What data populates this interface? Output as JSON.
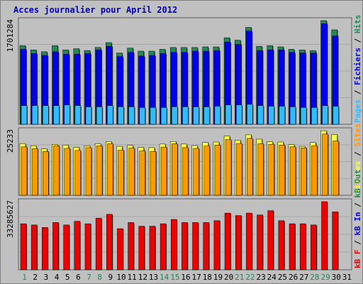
{
  "title": "Acces journalier pour April 2012",
  "colors": {
    "frame_bg": "#c0c0c0",
    "panel_bg": "#c0c0c0",
    "grid": "#a8a8a8",
    "pages": "#33bbff",
    "fichiers": "#0000ee",
    "hits": "#228855",
    "visites": "#ffff44",
    "sites": "#ff9900",
    "kb": "#ee0000",
    "title": "#0000c0",
    "weekend": "#228855"
  },
  "chart_data": [
    {
      "type": "bar",
      "title": "Acces journalier pour April 2012",
      "categories": [
        "1",
        "2",
        "3",
        "4",
        "5",
        "6",
        "7",
        "8",
        "9",
        "10",
        "11",
        "12",
        "13",
        "14",
        "15",
        "16",
        "17",
        "18",
        "19",
        "20",
        "21",
        "22",
        "23",
        "24",
        "25",
        "26",
        "27",
        "28",
        "29",
        "30",
        "31"
      ],
      "weekend_days": [
        "1",
        "7",
        "8",
        "14",
        "15",
        "21",
        "22",
        "28",
        "29"
      ],
      "ymax_label": "1701284",
      "ylim": [
        0,
        1701284
      ],
      "legend": [
        {
          "label": "Pages",
          "color": "#33bbff"
        },
        {
          "label": "Fichiers",
          "color": "#0000ee"
        },
        {
          "label": "Hits",
          "color": "#228855"
        }
      ],
      "series": [
        {
          "name": "Pages",
          "values": [
            307000,
            307000,
            307000,
            307000,
            317000,
            307000,
            286000,
            286000,
            307000,
            286000,
            286000,
            275000,
            275000,
            275000,
            286000,
            286000,
            286000,
            286000,
            296000,
            317000,
            317000,
            327000,
            307000,
            296000,
            296000,
            286000,
            275000,
            275000,
            307000,
            296000,
            0
          ]
        },
        {
          "name": "Fichiers",
          "values": [
            1230000,
            1160000,
            1130000,
            1190000,
            1150000,
            1150000,
            1160000,
            1220000,
            1280000,
            1110000,
            1180000,
            1120000,
            1130000,
            1160000,
            1180000,
            1180000,
            1200000,
            1200000,
            1210000,
            1350000,
            1310000,
            1530000,
            1210000,
            1220000,
            1220000,
            1180000,
            1170000,
            1170000,
            1650000,
            1450000,
            0
          ]
        },
        {
          "name": "Hits",
          "values": [
            1290000,
            1220000,
            1190000,
            1290000,
            1220000,
            1240000,
            1210000,
            1260000,
            1340000,
            1170000,
            1250000,
            1200000,
            1200000,
            1230000,
            1260000,
            1260000,
            1260000,
            1270000,
            1270000,
            1420000,
            1380000,
            1590000,
            1280000,
            1290000,
            1270000,
            1230000,
            1220000,
            1210000,
            1720000,
            1550000,
            0
          ]
        }
      ]
    },
    {
      "type": "bar",
      "ymax_label": "25233",
      "ylim": [
        0,
        25233
      ],
      "legend": [
        {
          "label": "Visites",
          "color": "#ffff44"
        },
        {
          "label": "Sites",
          "color": "#ff9900"
        }
      ],
      "series": [
        {
          "name": "Visites",
          "values": [
            20200,
            19300,
            18100,
            19800,
            19600,
            18700,
            19300,
            20100,
            21000,
            19100,
            19500,
            18700,
            18600,
            20000,
            21000,
            20000,
            19400,
            20600,
            20800,
            23100,
            21500,
            23600,
            21900,
            20900,
            20800,
            19800,
            19100,
            20600,
            25200,
            23700,
            0
          ]
        },
        {
          "name": "Sites",
          "values": [
            18900,
            18200,
            17100,
            19300,
            18300,
            17500,
            18600,
            19300,
            20100,
            17600,
            18400,
            17300,
            17100,
            18800,
            20100,
            18600,
            18300,
            19200,
            19600,
            21700,
            20200,
            22200,
            20100,
            19900,
            19600,
            18900,
            18500,
            19300,
            23900,
            21200,
            0
          ]
        }
      ]
    },
    {
      "type": "bar",
      "ymax_label": "33285627",
      "ylim": [
        0,
        33285627
      ],
      "legend": [
        {
          "label": "kB F",
          "color": "#ee0000"
        },
        {
          "label": "kB In",
          "color": "#0000ee"
        },
        {
          "label": "kB Out",
          "color": "#228855"
        }
      ],
      "series": [
        {
          "name": "kB F",
          "values": [
            22500000,
            21900000,
            20700000,
            23100000,
            21900000,
            23700000,
            22500000,
            25200000,
            27100000,
            20100000,
            23100000,
            21300000,
            21300000,
            22500000,
            24600000,
            23100000,
            23100000,
            23100000,
            24000000,
            27700000,
            26500000,
            27700000,
            26800000,
            28900000,
            24000000,
            22500000,
            22500000,
            21900000,
            33300000,
            28300000,
            0
          ]
        }
      ]
    }
  ]
}
